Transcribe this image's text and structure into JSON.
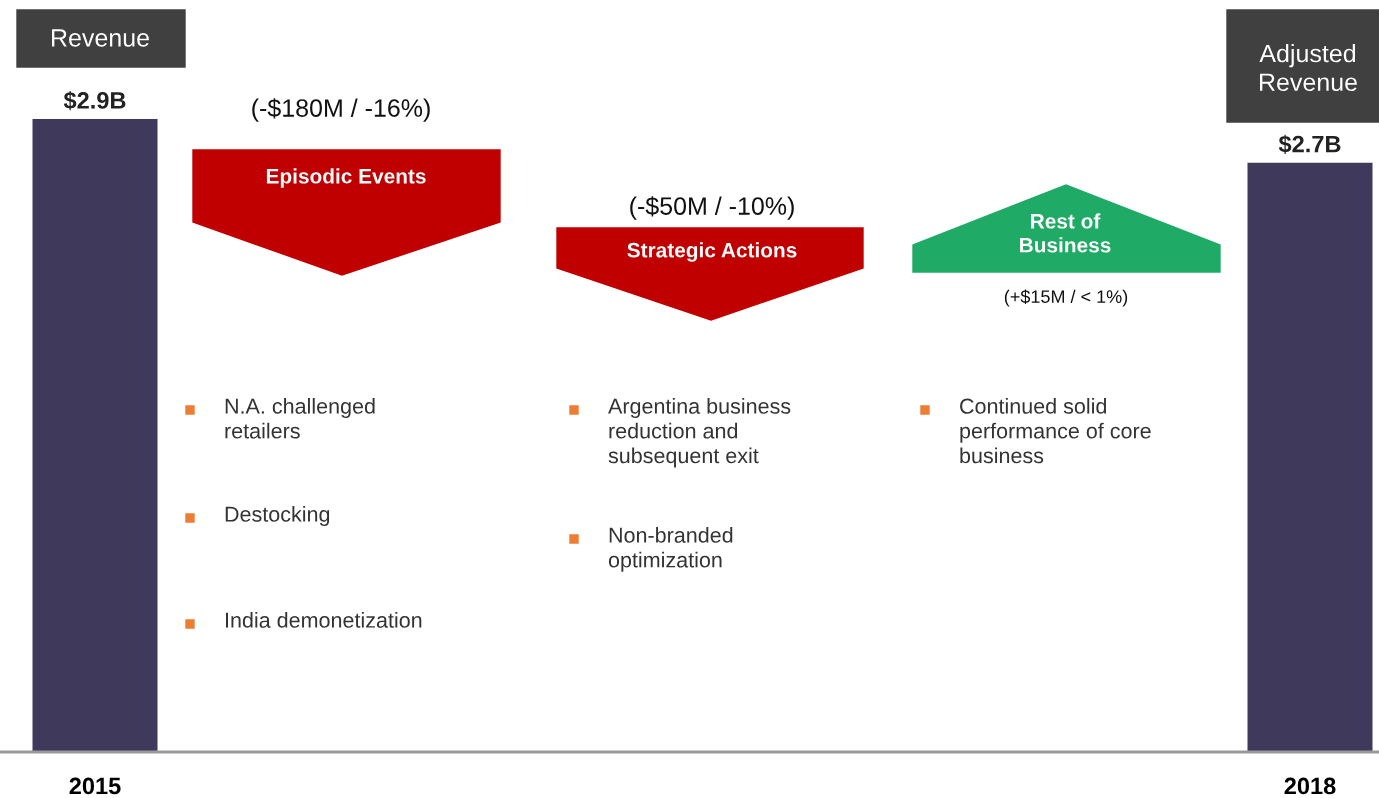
{
  "chart_data": {
    "type": "bar",
    "categories": [
      "2015",
      "2018"
    ],
    "values": [
      2.9,
      2.7
    ],
    "value_labels": [
      "$2.9B",
      "$2.7B"
    ],
    "color": "#3f3a5c",
    "tick_labels": "x",
    "grid": false,
    "legend": false,
    "annotations": [
      "Revenue",
      "Adjusted\nRevenue",
      "(-$180M / -16%)",
      "Episodic Events",
      "(-$50M / -10%)",
      "Strategic Actions",
      "Rest of\nBusiness",
      "(+$15M / < 1%)",
      "N.A. challenged\nretailers",
      "Destocking",
      "India demonetization",
      "Argentina business\nreduction and\nsubsequent exit",
      "Non-branded\noptimization",
      "Continued solid\nperformance of core\nbusiness"
    ]
  }
}
